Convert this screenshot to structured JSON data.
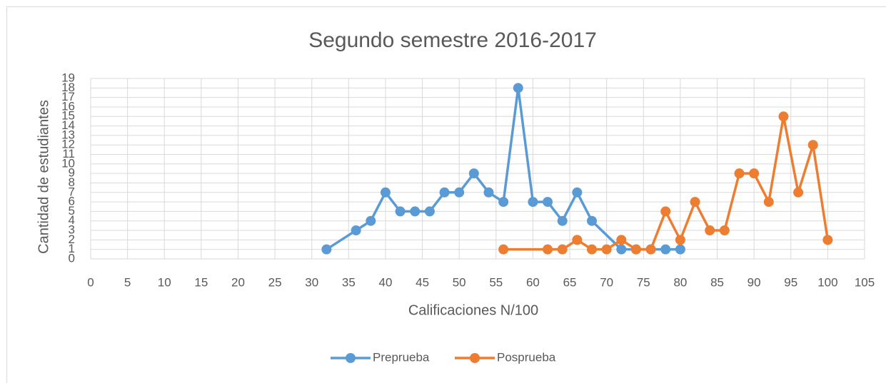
{
  "chart_data": {
    "type": "line",
    "title": "Segundo semestre 2016-2017",
    "x_label": "Calificaciones N/100",
    "y_label": "Cantidad de estudiantes",
    "xlim": [
      0,
      105
    ],
    "xticks": [
      0,
      5,
      10,
      15,
      20,
      25,
      30,
      35,
      40,
      45,
      50,
      55,
      60,
      65,
      70,
      75,
      80,
      85,
      90,
      95,
      100,
      105
    ],
    "ylim": [
      0,
      19
    ],
    "yticks": [
      0,
      1,
      2,
      3,
      4,
      5,
      6,
      7,
      8,
      9,
      10,
      11,
      12,
      13,
      14,
      15,
      16,
      17,
      18,
      19
    ],
    "grid": true,
    "legend": "bottom",
    "series": [
      {
        "name": "Preprueba",
        "color": "#5b9bd5",
        "x": [
          32,
          36,
          38,
          40,
          42,
          44,
          46,
          48,
          50,
          52,
          54,
          56,
          58,
          60,
          62,
          64,
          66,
          68,
          72,
          74,
          76,
          78,
          80
        ],
        "values": [
          1,
          3,
          4,
          7,
          5,
          5,
          5,
          7,
          7,
          9,
          7,
          6,
          18,
          6,
          6,
          4,
          7,
          4,
          1,
          1,
          1,
          1,
          1
        ]
      },
      {
        "name": "Posprueba",
        "color": "#ed7d31",
        "x": [
          56,
          62,
          64,
          66,
          68,
          70,
          72,
          74,
          76,
          78,
          80,
          82,
          84,
          86,
          88,
          90,
          92,
          94,
          96,
          98,
          100
        ],
        "values": [
          1,
          1,
          1,
          2,
          1,
          1,
          2,
          1,
          1,
          5,
          2,
          6,
          3,
          3,
          9,
          9,
          6,
          15,
          7,
          12,
          2
        ]
      }
    ]
  }
}
